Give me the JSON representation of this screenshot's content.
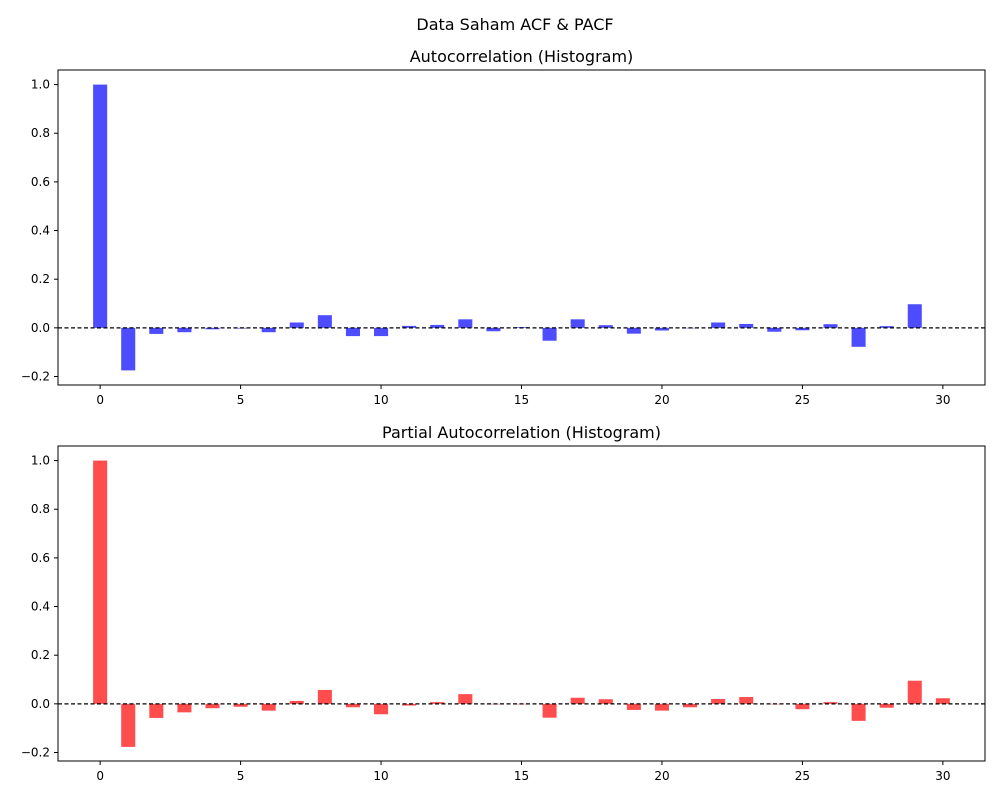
{
  "figure": {
    "suptitle": "Data Saham ACF & PACF"
  },
  "chart_data": [
    {
      "type": "bar",
      "title": "Autocorrelation (Histogram)",
      "xlabel": "",
      "ylabel": "",
      "color": "#4d4dff",
      "x": [
        0,
        1,
        2,
        3,
        4,
        5,
        6,
        7,
        8,
        9,
        10,
        11,
        12,
        13,
        14,
        15,
        16,
        17,
        18,
        19,
        20,
        21,
        22,
        23,
        24,
        25,
        26,
        27,
        28,
        29
      ],
      "values": [
        1.0,
        -0.175,
        -0.025,
        -0.018,
        -0.006,
        -0.003,
        -0.018,
        0.022,
        0.052,
        -0.034,
        -0.034,
        0.008,
        0.012,
        0.035,
        -0.014,
        0.003,
        -0.053,
        0.035,
        0.011,
        -0.024,
        -0.011,
        0.0,
        0.022,
        0.016,
        -0.016,
        -0.01,
        0.015,
        -0.078,
        0.007,
        0.097
      ],
      "xlim": [
        -1.5,
        31.5
      ],
      "ylim": [
        -0.235,
        1.06
      ],
      "xticks": [
        0,
        5,
        10,
        15,
        20,
        25,
        30
      ],
      "xtick_labels": [
        "0",
        "5",
        "10",
        "15",
        "20",
        "25",
        "30"
      ],
      "yticks": [
        -0.2,
        0.0,
        0.2,
        0.4,
        0.6,
        0.8,
        1.0
      ],
      "ytick_labels": [
        "−0.2",
        "0.0",
        "0.2",
        "0.4",
        "0.6",
        "0.8",
        "1.0"
      ],
      "zero_line": "dashed",
      "grid": false
    },
    {
      "type": "bar",
      "title": "Partial Autocorrelation (Histogram)",
      "xlabel": "",
      "ylabel": "",
      "color": "#ff4d4d",
      "x": [
        0,
        1,
        2,
        3,
        4,
        5,
        6,
        7,
        8,
        9,
        10,
        11,
        12,
        13,
        14,
        15,
        16,
        17,
        18,
        19,
        20,
        21,
        22,
        23,
        24,
        25,
        26,
        27,
        28,
        29,
        30
      ],
      "values": [
        1.0,
        -0.177,
        -0.058,
        -0.035,
        -0.018,
        -0.012,
        -0.028,
        0.012,
        0.057,
        -0.014,
        -0.043,
        -0.007,
        0.007,
        0.04,
        0.0,
        0.0,
        -0.057,
        0.025,
        0.019,
        -0.025,
        -0.028,
        -0.014,
        0.02,
        0.028,
        -0.002,
        -0.022,
        0.007,
        -0.07,
        -0.016,
        0.095,
        0.023
      ],
      "xlim": [
        -1.5,
        31.5
      ],
      "ylim": [
        -0.235,
        1.06
      ],
      "xticks": [
        0,
        5,
        10,
        15,
        20,
        25,
        30
      ],
      "xtick_labels": [
        "0",
        "5",
        "10",
        "15",
        "20",
        "25",
        "30"
      ],
      "yticks": [
        -0.2,
        0.0,
        0.2,
        0.4,
        0.6,
        0.8,
        1.0
      ],
      "ytick_labels": [
        "−0.2",
        "0.0",
        "0.2",
        "0.4",
        "0.6",
        "0.8",
        "1.0"
      ],
      "zero_line": "dashed",
      "grid": false
    }
  ]
}
